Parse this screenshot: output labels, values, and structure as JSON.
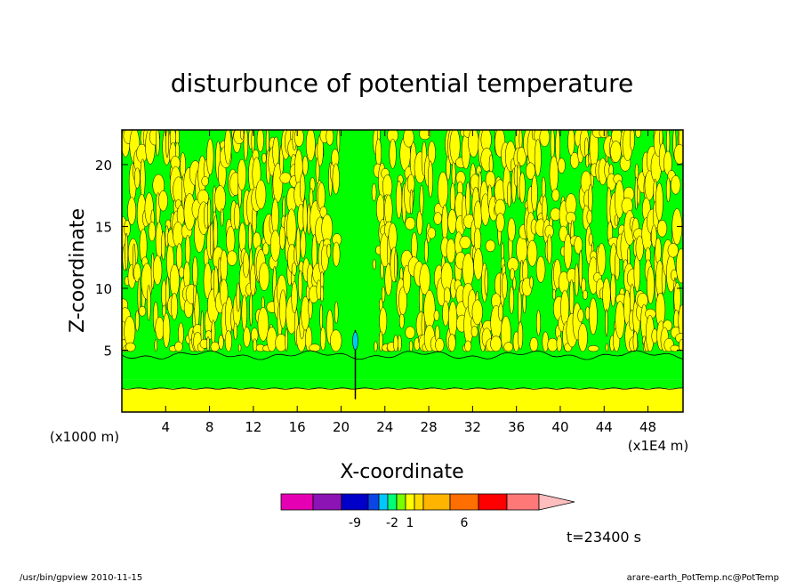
{
  "footer": {
    "left": "/usr/bin/gpview   2010-11-15",
    "right": "arare-earth_PotTemp.nc@PotTemp"
  },
  "chart_data": {
    "type": "heatmap",
    "title": "disturbunce of potential temperature",
    "xlabel": "X-coordinate",
    "ylabel": "Z-coordinate",
    "x_unit": "(x1E4 m)",
    "y_unit": "(x1000 m)",
    "xlim": [
      0,
      51.2
    ],
    "ylim": [
      0,
      22.8
    ],
    "x_ticks": [
      4,
      8,
      12,
      16,
      20,
      24,
      28,
      32,
      36,
      40,
      44,
      48
    ],
    "y_ticks": [
      5,
      10,
      15,
      20
    ],
    "grid": false,
    "time_label": "t=23400 s",
    "colorbar": {
      "colors": [
        "#e600b4",
        "#8c14b4",
        "#0000c8",
        "#0a46e6",
        "#00c8ff",
        "#00ff78",
        "#78ff00",
        "#ffff00",
        "#ffdc00",
        "#ffb400",
        "#ff6e00",
        "#ff0000",
        "#ff7878",
        "#ffbebe"
      ],
      "tick_labels": [
        {
          "label": "-9",
          "boundary": 2
        },
        {
          "label": "-2",
          "boundary": 5
        },
        {
          "label": "1",
          "boundary": 7
        },
        {
          "label": "6",
          "boundary": 10
        }
      ]
    },
    "field_colors": {
      "below_zero": "#00ff00",
      "above_zero": "#ffff00",
      "contour_line": "#000000"
    },
    "bands": [
      {
        "z0": 0,
        "z1": 1.9,
        "value": 1
      },
      {
        "z0": 1.9,
        "z1": 2.6,
        "value": -1
      },
      {
        "z0": 2.6,
        "z1": 4.6,
        "value": -1
      },
      {
        "z0": 4.6,
        "z1": 22.8,
        "value": "mixed"
      }
    ],
    "plumes": [
      {
        "x": 21.3,
        "z_top": 22.8,
        "value": -1
      }
    ]
  }
}
